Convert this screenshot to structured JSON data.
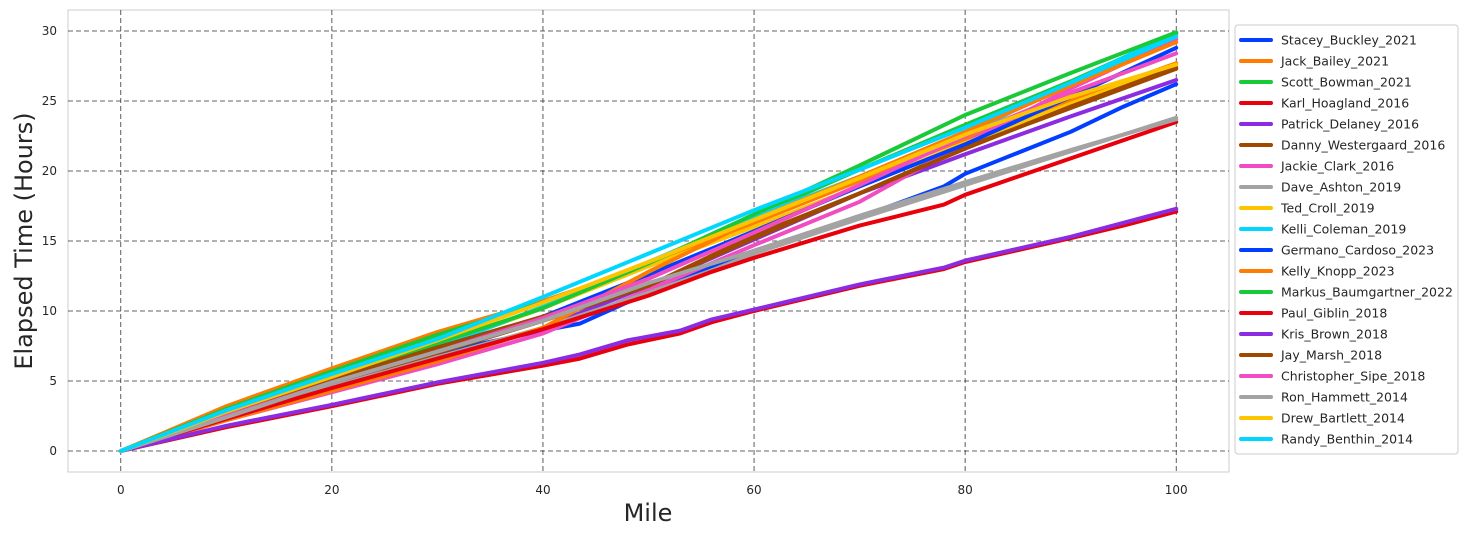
{
  "chart_data": {
    "type": "line",
    "title": "",
    "xlabel": "Mile",
    "ylabel": "Elapsed Time (Hours)",
    "xlim": [
      -5,
      105
    ],
    "ylim": [
      -1.5,
      31.5
    ],
    "xticks": [
      0,
      20,
      40,
      60,
      80,
      100
    ],
    "yticks": [
      0,
      5,
      10,
      15,
      20,
      25,
      30
    ],
    "grid": true,
    "legend_position": "outside-right",
    "series": [
      {
        "name": "Stacey_Buckley_2021",
        "color": "#023eff",
        "x": [
          0,
          10,
          20,
          30,
          40,
          43.5,
          50,
          56,
          60,
          70,
          78,
          80,
          90,
          95,
          100
        ],
        "y": [
          0,
          2.7,
          5.0,
          7.0,
          8.6,
          9.1,
          11.3,
          13.2,
          14.3,
          16.7,
          18.9,
          19.8,
          22.8,
          24.6,
          26.2
        ]
      },
      {
        "name": "Jack_Bailey_2021",
        "color": "#ff7c00",
        "x": [
          0,
          10,
          20,
          30,
          40,
          50,
          60,
          70,
          80,
          90,
          100
        ],
        "y": [
          0,
          3.2,
          5.9,
          8.5,
          10.7,
          13.3,
          16.3,
          19.3,
          22.3,
          25.0,
          27.7
        ]
      },
      {
        "name": "Scott_Bowman_2021",
        "color": "#1ac938",
        "x": [
          0,
          10,
          20,
          30,
          40,
          50,
          60,
          70,
          80,
          90,
          100
        ],
        "y": [
          0,
          3.0,
          5.7,
          8.3,
          10.6,
          13.4,
          16.8,
          20.1,
          23.3,
          26.4,
          29.8
        ]
      },
      {
        "name": "Karl_Hoagland_2016",
        "color": "#e8000b",
        "x": [
          0,
          10,
          20,
          30,
          40,
          43.5,
          48,
          53,
          56,
          60,
          70,
          78,
          80,
          90,
          95,
          100
        ],
        "y": [
          0,
          1.7,
          3.2,
          4.8,
          6.1,
          6.6,
          7.6,
          8.4,
          9.2,
          10.0,
          11.8,
          13.0,
          13.5,
          15.2,
          16.1,
          17.1
        ]
      },
      {
        "name": "Patrick_Delaney_2016",
        "color": "#8b2be2",
        "x": [
          0,
          10,
          20,
          30,
          40,
          50,
          60,
          70,
          80,
          90,
          100
        ],
        "y": [
          0,
          2.3,
          4.4,
          6.4,
          8.8,
          11.8,
          15.1,
          18.4,
          21.2,
          23.9,
          26.5
        ]
      },
      {
        "name": "Danny_Westergaard_2016",
        "color": "#9f4800",
        "x": [
          0,
          10,
          20,
          30,
          40,
          50,
          60,
          70,
          80,
          90,
          100
        ],
        "y": [
          0,
          2.4,
          4.7,
          7.0,
          9.3,
          11.8,
          15.2,
          18.4,
          21.7,
          24.5,
          27.3
        ]
      },
      {
        "name": "Jackie_Clark_2016",
        "color": "#f14cc1",
        "x": [
          0,
          10,
          20,
          30,
          40,
          50,
          60,
          70,
          80,
          90,
          100
        ],
        "y": [
          0,
          2.2,
          4.2,
          6.2,
          8.4,
          11.5,
          14.7,
          17.8,
          22.0,
          25.9,
          29.4
        ]
      },
      {
        "name": "Dave_Ashton_2019",
        "color": "#a3a3a3",
        "x": [
          0,
          10,
          20,
          30,
          40,
          50,
          56,
          60,
          70,
          80,
          90,
          100
        ],
        "y": [
          0,
          2.3,
          4.6,
          6.7,
          8.8,
          11.3,
          12.9,
          14.1,
          16.6,
          19.0,
          21.4,
          23.8
        ]
      },
      {
        "name": "Ted_Croll_2019",
        "color": "#ffc400",
        "x": [
          0,
          10,
          20,
          30,
          40,
          50,
          60,
          70,
          80,
          90,
          100
        ],
        "y": [
          0,
          2.7,
          5.2,
          7.5,
          10.2,
          13.2,
          16.0,
          18.9,
          22.0,
          24.8,
          27.6
        ]
      },
      {
        "name": "Kelli_Coleman_2019",
        "color": "#00d7ff",
        "x": [
          0,
          10,
          20,
          30,
          40,
          50,
          60,
          70,
          80,
          90,
          100
        ],
        "y": [
          0,
          2.6,
          5.0,
          7.4,
          10.3,
          13.5,
          16.7,
          19.6,
          22.6,
          26.3,
          29.9
        ]
      },
      {
        "name": "Germano_Cardoso_2023",
        "color": "#023eff",
        "x": [
          0,
          10,
          20,
          30,
          40,
          50,
          60,
          70,
          80,
          90,
          100
        ],
        "y": [
          0,
          2.5,
          4.9,
          7.2,
          9.6,
          12.6,
          15.7,
          18.9,
          21.9,
          25.3,
          28.8
        ]
      },
      {
        "name": "Kelly_Knopp_2023",
        "color": "#ff7c00",
        "x": [
          0,
          10,
          20,
          30,
          40,
          50,
          60,
          70,
          80,
          90,
          100
        ],
        "y": [
          0,
          2.2,
          4.3,
          6.4,
          8.8,
          12.8,
          16.5,
          19.6,
          22.8,
          26.1,
          29.2
        ]
      },
      {
        "name": "Markus_Baumgartner_2022",
        "color": "#1ac938",
        "x": [
          0,
          10,
          20,
          30,
          40,
          50,
          60,
          70,
          80,
          90,
          100
        ],
        "y": [
          0,
          2.7,
          5.2,
          7.7,
          10.2,
          13.4,
          16.9,
          20.4,
          24.0,
          27.0,
          29.9
        ]
      },
      {
        "name": "Paul_Giblin_2018",
        "color": "#e8000b",
        "x": [
          0,
          10,
          20,
          30,
          40,
          50,
          56,
          60,
          70,
          78,
          80,
          90,
          100
        ],
        "y": [
          0,
          2.3,
          4.5,
          6.6,
          8.7,
          11.1,
          12.8,
          13.8,
          16.1,
          17.6,
          18.3,
          20.9,
          23.5
        ]
      },
      {
        "name": "Kris_Brown_2018",
        "color": "#8b2be2",
        "x": [
          0,
          10,
          20,
          30,
          40,
          43.5,
          48,
          53,
          56,
          60,
          70,
          78,
          80,
          90,
          95,
          100
        ],
        "y": [
          0,
          1.8,
          3.3,
          4.9,
          6.3,
          6.9,
          7.9,
          8.6,
          9.4,
          10.1,
          11.9,
          13.1,
          13.6,
          15.3,
          16.3,
          17.3
        ]
      },
      {
        "name": "Jay_Marsh_2018",
        "color": "#9f4800",
        "x": [
          0,
          10,
          20,
          30,
          40,
          50,
          60,
          70,
          80,
          90,
          100
        ],
        "y": [
          0,
          2.6,
          5.1,
          7.4,
          9.6,
          11.8,
          15.4,
          18.4,
          21.6,
          24.6,
          27.4
        ]
      },
      {
        "name": "Christopher_Sipe_2018",
        "color": "#f14cc1",
        "x": [
          0,
          10,
          20,
          30,
          40,
          50,
          60,
          70,
          80,
          90,
          100
        ],
        "y": [
          0,
          2.5,
          4.9,
          7.1,
          9.5,
          12.3,
          15.6,
          19.0,
          22.5,
          25.6,
          28.4
        ]
      },
      {
        "name": "Ron_Hammett_2014",
        "color": "#a3a3a3",
        "x": [
          0,
          10,
          20,
          30,
          40,
          50,
          60,
          70,
          80,
          90,
          100
        ],
        "y": [
          0,
          2.4,
          4.9,
          7.1,
          9.3,
          12.0,
          14.3,
          16.8,
          19.2,
          21.5,
          23.7
        ]
      },
      {
        "name": "Drew_Bartlett_2014",
        "color": "#ffc400",
        "x": [
          0,
          10,
          20,
          30,
          40,
          50,
          60,
          70,
          80,
          90,
          100
        ],
        "y": [
          0,
          2.8,
          5.3,
          7.9,
          10.6,
          13.5,
          16.5,
          19.5,
          22.6,
          25.3,
          27.6
        ]
      },
      {
        "name": "Randy_Benthin_2014",
        "color": "#00d7ff",
        "x": [
          0,
          10,
          20,
          30,
          40,
          50,
          60,
          70,
          80,
          90,
          100
        ],
        "y": [
          0,
          2.9,
          5.5,
          8.0,
          11.0,
          14.1,
          17.2,
          20.1,
          23.1,
          26.3,
          29.6
        ]
      }
    ]
  }
}
